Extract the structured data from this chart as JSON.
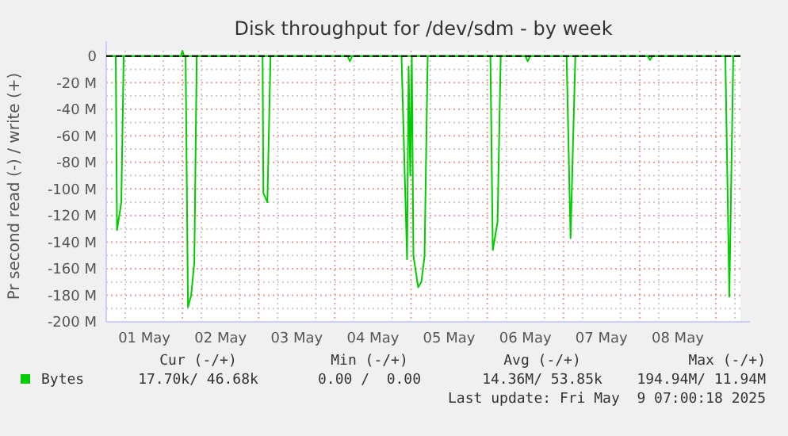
{
  "chart_data": {
    "type": "line",
    "title": "Disk throughput for /dev/sdm - by week",
    "ylabel": "Pr second read (-) / write (+)",
    "xlim": [
      "2025-05-01T00:00",
      "2025-05-09T07:45"
    ],
    "xticks": [
      {
        "value": "2025-05-01T06:00",
        "label": null
      },
      {
        "value": "2025-05-01T12:00",
        "label": "01 May"
      },
      {
        "value": "2025-05-01T18:00",
        "label": null
      },
      {
        "value": "2025-05-02T00:00",
        "label": null
      },
      {
        "value": "2025-05-02T06:00",
        "label": null
      },
      {
        "value": "2025-05-02T12:00",
        "label": "02 May"
      },
      {
        "value": "2025-05-02T18:00",
        "label": null
      },
      {
        "value": "2025-05-03T00:00",
        "label": null
      },
      {
        "value": "2025-05-03T06:00",
        "label": null
      },
      {
        "value": "2025-05-03T12:00",
        "label": "03 May"
      },
      {
        "value": "2025-05-03T18:00",
        "label": null
      },
      {
        "value": "2025-05-04T00:00",
        "label": null
      },
      {
        "value": "2025-05-04T06:00",
        "label": null
      },
      {
        "value": "2025-05-04T12:00",
        "label": "04 May"
      },
      {
        "value": "2025-05-04T18:00",
        "label": null
      },
      {
        "value": "2025-05-05T00:00",
        "label": null
      },
      {
        "value": "2025-05-05T06:00",
        "label": null
      },
      {
        "value": "2025-05-05T12:00",
        "label": "05 May"
      },
      {
        "value": "2025-05-05T18:00",
        "label": null
      },
      {
        "value": "2025-05-06T00:00",
        "label": null
      },
      {
        "value": "2025-05-06T06:00",
        "label": null
      },
      {
        "value": "2025-05-06T12:00",
        "label": "06 May"
      },
      {
        "value": "2025-05-06T18:00",
        "label": null
      },
      {
        "value": "2025-05-07T00:00",
        "label": null
      },
      {
        "value": "2025-05-07T06:00",
        "label": null
      },
      {
        "value": "2025-05-07T12:00",
        "label": "07 May"
      },
      {
        "value": "2025-05-07T18:00",
        "label": null
      },
      {
        "value": "2025-05-08T00:00",
        "label": null
      },
      {
        "value": "2025-05-08T06:00",
        "label": null
      },
      {
        "value": "2025-05-08T12:00",
        "label": "08 May"
      },
      {
        "value": "2025-05-08T18:00",
        "label": null
      },
      {
        "value": "2025-05-09T00:00",
        "label": null
      },
      {
        "value": "2025-05-09T06:00",
        "label": null
      }
    ],
    "ylim": [
      -200,
      4
    ],
    "yticks": [
      {
        "value": -200,
        "label": "-200 M"
      },
      {
        "value": -190,
        "label": null
      },
      {
        "value": -180,
        "label": "-180 M"
      },
      {
        "value": -170,
        "label": null
      },
      {
        "value": -160,
        "label": "-160 M"
      },
      {
        "value": -150,
        "label": null
      },
      {
        "value": -140,
        "label": "-140 M"
      },
      {
        "value": -130,
        "label": null
      },
      {
        "value": -120,
        "label": "-120 M"
      },
      {
        "value": -110,
        "label": null
      },
      {
        "value": -100,
        "label": "-100 M"
      },
      {
        "value": -90,
        "label": null
      },
      {
        "value": -80,
        "label": "-80 M"
      },
      {
        "value": -70,
        "label": null
      },
      {
        "value": -60,
        "label": "-60 M"
      },
      {
        "value": -50,
        "label": null
      },
      {
        "value": -40,
        "label": "-40 M"
      },
      {
        "value": -30,
        "label": null
      },
      {
        "value": -20,
        "label": "-20 M"
      },
      {
        "value": -10,
        "label": null
      },
      0
    ],
    "grid": true,
    "legend": "bottom",
    "marker": "none",
    "line_style": "solid",
    "ref_lines": [
      {
        "axis": "y",
        "value": 0,
        "color": "#000000",
        "line_style": "dashed"
      }
    ],
    "series": [
      {
        "name": "Bytes",
        "color": "#00cc00",
        "x": [
          "2025-05-01T00:00",
          "2025-05-01T03:00",
          "2025-05-01T03:24",
          "2025-05-01T04:45",
          "2025-05-01T05:30",
          "2025-05-02T01:00",
          "2025-05-02T01:45",
          "2025-05-02T02:45",
          "2025-05-02T03:45",
          "2025-05-02T04:30",
          "2025-05-03T01:15",
          "2025-05-03T01:30",
          "2025-05-03T02:45",
          "2025-05-03T03:45",
          "2025-05-04T04:00",
          "2025-05-04T04:45",
          "2025-05-04T05:30",
          "2025-05-04T21:00",
          "2025-05-04T22:45",
          "2025-05-04T23:15",
          "2025-05-04T23:45",
          "2025-05-05T00:15",
          "2025-05-05T00:45",
          "2025-05-05T02:15",
          "2025-05-05T03:15",
          "2025-05-05T04:15",
          "2025-05-05T05:15",
          "2025-05-06T01:00",
          "2025-05-06T01:45",
          "2025-05-06T03:15",
          "2025-05-06T04:15",
          "2025-05-06T12:00",
          "2025-05-06T12:45",
          "2025-05-06T13:30",
          "2025-05-07T01:00",
          "2025-05-07T02:15",
          "2025-05-07T03:45",
          "2025-05-08T02:30",
          "2025-05-08T03:15",
          "2025-05-08T04:00",
          "2025-05-09T03:00",
          "2025-05-09T04:15",
          "2025-05-09T05:30",
          "2025-05-09T07:45"
        ],
        "values": [
          0,
          0,
          -131,
          -110,
          0,
          0,
          -189,
          -180,
          -155,
          0,
          0,
          -103,
          -110,
          0,
          0,
          -4,
          0,
          0,
          -153,
          -8,
          -90,
          0,
          -150,
          -174,
          -170,
          -151,
          0,
          0,
          -146,
          -125,
          0,
          0,
          -4,
          0,
          0,
          -137,
          0,
          0,
          -3,
          0,
          0,
          -181,
          0,
          0
        ]
      },
      {
        "color": "#00cc00",
        "x": [
          "2025-05-01T00:00",
          "2025-05-01T23:30",
          "2025-05-02T00:00",
          "2025-05-02T00:30",
          "2025-05-09T07:45"
        ],
        "values": [
          0,
          0,
          4,
          0,
          0
        ]
      }
    ],
    "annotations": [
      "Cur (-/+)",
      "Min (-/+)",
      "Avg (-/+)",
      "Max (-/+)",
      "17.70k/ 46.68k",
      "0.00 /  0.00",
      "14.36M/ 53.85k",
      "194.94M/ 11.94M",
      "Last update: Fri May  9 07:00:18 2025"
    ]
  }
}
